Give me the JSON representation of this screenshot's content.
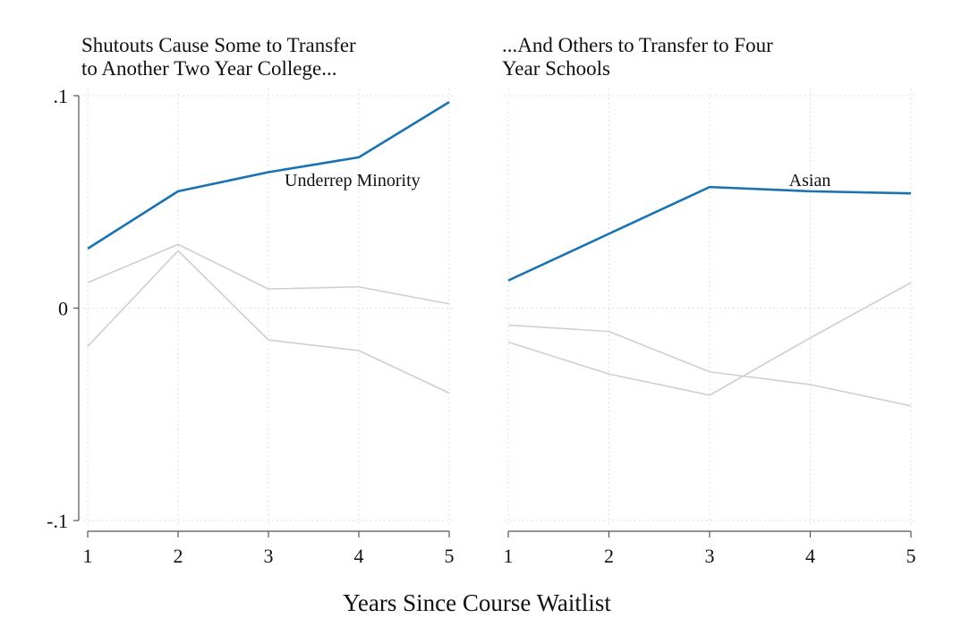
{
  "xaxis_title": "Years Since Course Waitlist",
  "chart_data": [
    {
      "type": "line",
      "title_lines": [
        "Shutouts Cause Some to Transfer",
        "to Another Two Year College..."
      ],
      "x": [
        1,
        2,
        3,
        4,
        5
      ],
      "xlim": [
        1,
        5
      ],
      "ylim": [
        -0.1,
        0.1
      ],
      "yticks": [
        -0.1,
        0,
        0.1
      ],
      "ytick_labels": [
        "-.1",
        "0",
        ".1"
      ],
      "xtick_labels": [
        "1",
        "2",
        "3",
        "4",
        "5"
      ],
      "grid": true,
      "highlight_color": "#1a72b0",
      "muted_color": "#cfcfcf",
      "series": [
        {
          "name": "Underrep Minority",
          "highlight": true,
          "values": [
            0.028,
            0.055,
            0.064,
            0.071,
            0.097
          ]
        },
        {
          "highlight": false,
          "values": [
            0.012,
            0.03,
            0.009,
            0.01,
            0.002
          ]
        },
        {
          "highlight": false,
          "values": [
            -0.018,
            0.027,
            -0.015,
            -0.02,
            -0.04
          ]
        }
      ],
      "annotation": "Underrep Minority"
    },
    {
      "type": "line",
      "title_lines": [
        "...And Others to Transfer to Four",
        "Year Schools"
      ],
      "x": [
        1,
        2,
        3,
        4,
        5
      ],
      "xlim": [
        1,
        5
      ],
      "ylim": [
        -0.1,
        0.1
      ],
      "yticks": [
        -0.1,
        0,
        0.1
      ],
      "ytick_labels": [],
      "xtick_labels": [
        "1",
        "2",
        "3",
        "4",
        "5"
      ],
      "grid": true,
      "highlight_color": "#1a72b0",
      "muted_color": "#cfcfcf",
      "series": [
        {
          "name": "Asian",
          "highlight": true,
          "values": [
            0.013,
            0.035,
            0.057,
            0.055,
            0.054
          ]
        },
        {
          "highlight": false,
          "values": [
            -0.008,
            -0.011,
            -0.03,
            -0.036,
            -0.046
          ]
        },
        {
          "highlight": false,
          "values": [
            -0.016,
            -0.031,
            -0.041,
            -0.014,
            0.012
          ]
        }
      ],
      "annotation": "Asian"
    }
  ]
}
